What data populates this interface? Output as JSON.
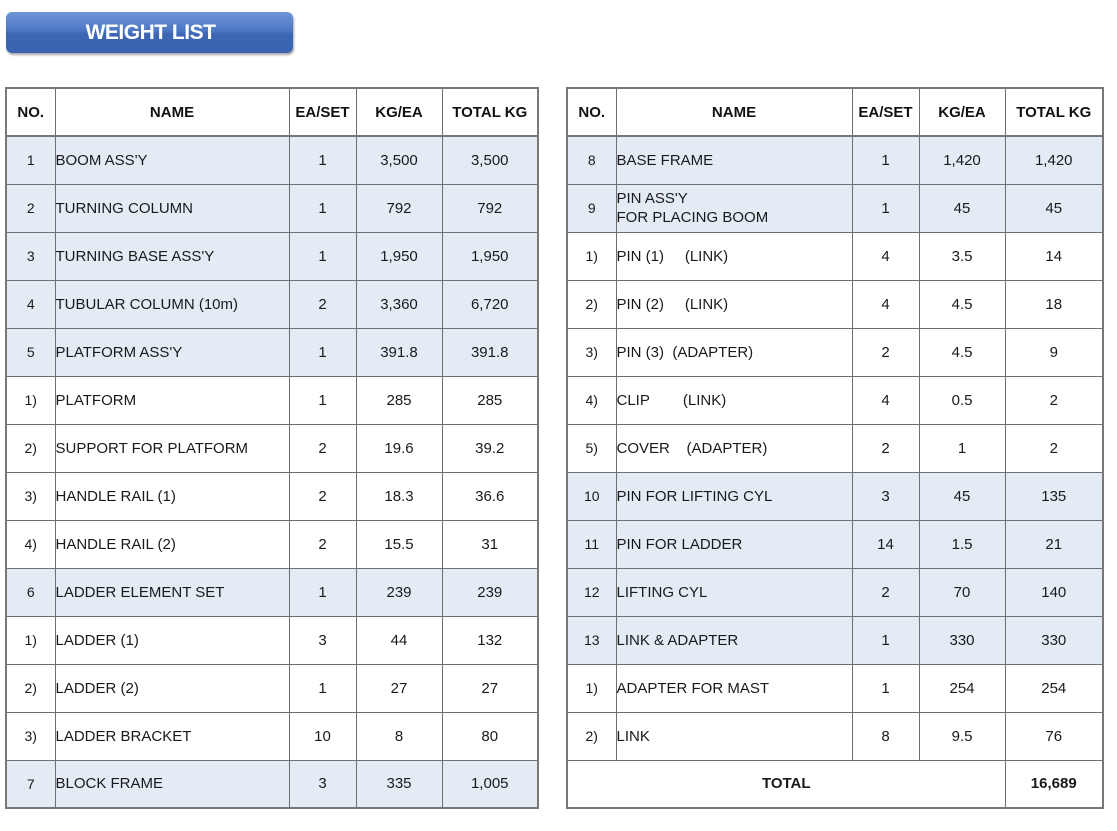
{
  "title": "WEIGHT LIST",
  "headers": {
    "no": "NO.",
    "name": "NAME",
    "ea_set": "EA/SET",
    "kg_ea": "KG/EA",
    "total_kg": "TOTAL KG"
  },
  "left_rows": [
    {
      "no": "1",
      "name": [
        "BOOM ASS'Y"
      ],
      "ea_set": "1",
      "kg_ea": "3,500",
      "total_kg": "3,500",
      "shaded": true
    },
    {
      "no": "2",
      "name": [
        "TURNING COLUMN"
      ],
      "ea_set": "1",
      "kg_ea": "792",
      "total_kg": "792",
      "shaded": true
    },
    {
      "no": "3",
      "name": [
        "TURNING BASE ASS'Y"
      ],
      "ea_set": "1",
      "kg_ea": "1,950",
      "total_kg": "1,950",
      "shaded": true
    },
    {
      "no": "4",
      "name": [
        "TUBULAR COLUMN (10m)"
      ],
      "ea_set": "2",
      "kg_ea": "3,360",
      "total_kg": "6,720",
      "shaded": true
    },
    {
      "no": "5",
      "name": [
        "PLATFORM ASS'Y"
      ],
      "ea_set": "1",
      "kg_ea": "391.8",
      "total_kg": "391.8",
      "shaded": true
    },
    {
      "no": "1)",
      "name": [
        "PLATFORM"
      ],
      "ea_set": "1",
      "kg_ea": "285",
      "total_kg": "285",
      "shaded": false
    },
    {
      "no": "2)",
      "name": [
        "SUPPORT FOR PLATFORM"
      ],
      "ea_set": "2",
      "kg_ea": "19.6",
      "total_kg": "39.2",
      "shaded": false
    },
    {
      "no": "3)",
      "name": [
        "HANDLE RAIL (1)"
      ],
      "ea_set": "2",
      "kg_ea": "18.3",
      "total_kg": "36.6",
      "shaded": false
    },
    {
      "no": "4)",
      "name": [
        "HANDLE RAIL (2)"
      ],
      "ea_set": "2",
      "kg_ea": "15.5",
      "total_kg": "31",
      "shaded": false
    },
    {
      "no": "6",
      "name": [
        "LADDER ELEMENT SET"
      ],
      "ea_set": "1",
      "kg_ea": "239",
      "total_kg": "239",
      "shaded": true
    },
    {
      "no": "1)",
      "name": [
        "LADDER (1)"
      ],
      "ea_set": "3",
      "kg_ea": "44",
      "total_kg": "132",
      "shaded": false
    },
    {
      "no": "2)",
      "name": [
        "LADDER (2)"
      ],
      "ea_set": "1",
      "kg_ea": "27",
      "total_kg": "27",
      "shaded": false
    },
    {
      "no": "3)",
      "name": [
        "LADDER BRACKET"
      ],
      "ea_set": "10",
      "kg_ea": "8",
      "total_kg": "80",
      "shaded": false
    },
    {
      "no": "7",
      "name": [
        "BLOCK FRAME"
      ],
      "ea_set": "3",
      "kg_ea": "335",
      "total_kg": "1,005",
      "shaded": true
    }
  ],
  "right_rows": [
    {
      "no": "8",
      "name": [
        "BASE FRAME"
      ],
      "ea_set": "1",
      "kg_ea": "1,420",
      "total_kg": "1,420",
      "shaded": true
    },
    {
      "no": "9",
      "name": [
        "PIN ASS'Y",
        "FOR PLACING BOOM"
      ],
      "ea_set": "1",
      "kg_ea": "45",
      "total_kg": "45",
      "shaded": true
    },
    {
      "no": "1)",
      "name": [
        "PIN (1)     (LINK)"
      ],
      "ea_set": "4",
      "kg_ea": "3.5",
      "total_kg": "14",
      "shaded": false
    },
    {
      "no": "2)",
      "name": [
        "PIN (2)     (LINK)"
      ],
      "ea_set": "4",
      "kg_ea": "4.5",
      "total_kg": "18",
      "shaded": false
    },
    {
      "no": "3)",
      "name": [
        "PIN (3)  (ADAPTER)"
      ],
      "ea_set": "2",
      "kg_ea": "4.5",
      "total_kg": "9",
      "shaded": false
    },
    {
      "no": "4)",
      "name": [
        "CLIP        (LINK)"
      ],
      "ea_set": "4",
      "kg_ea": "0.5",
      "total_kg": "2",
      "shaded": false
    },
    {
      "no": "5)",
      "name": [
        "COVER    (ADAPTER)"
      ],
      "ea_set": "2",
      "kg_ea": "1",
      "total_kg": "2",
      "shaded": false
    },
    {
      "no": "10",
      "name": [
        "PIN FOR LIFTING CYL"
      ],
      "ea_set": "3",
      "kg_ea": "45",
      "total_kg": "135",
      "shaded": true
    },
    {
      "no": "11",
      "name": [
        "PIN FOR LADDER"
      ],
      "ea_set": "14",
      "kg_ea": "1.5",
      "total_kg": "21",
      "shaded": true
    },
    {
      "no": "12",
      "name": [
        "LIFTING CYL"
      ],
      "ea_set": "2",
      "kg_ea": "70",
      "total_kg": "140",
      "shaded": true
    },
    {
      "no": "13",
      "name": [
        "LINK & ADAPTER"
      ],
      "ea_set": "1",
      "kg_ea": "330",
      "total_kg": "330",
      "shaded": true
    },
    {
      "no": "1)",
      "name": [
        "ADAPTER FOR MAST"
      ],
      "ea_set": "1",
      "kg_ea": "254",
      "total_kg": "254",
      "shaded": false
    },
    {
      "no": "2)",
      "name": [
        "LINK"
      ],
      "ea_set": "8",
      "kg_ea": "9.5",
      "total_kg": "76",
      "shaded": false
    }
  ],
  "total": {
    "label": "TOTAL",
    "value": "16,689"
  },
  "colors": {
    "banner": "#4d77c4",
    "shaded_row": "#e3ebf5",
    "border": "#6f6f6f"
  }
}
